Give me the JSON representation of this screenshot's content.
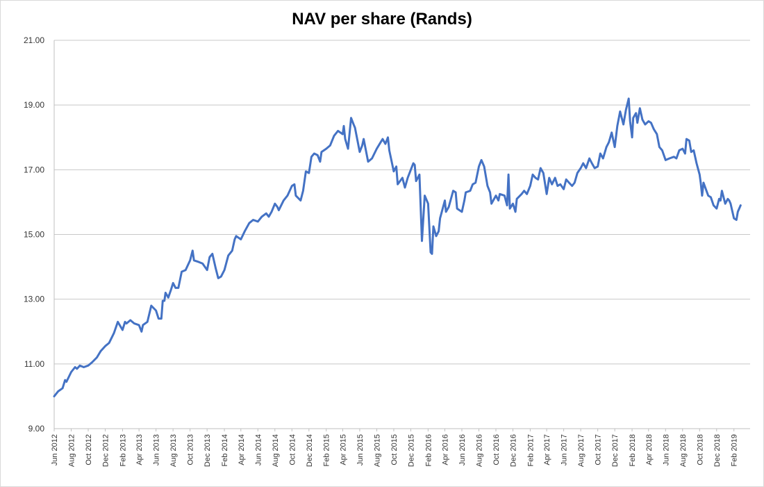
{
  "chart_data": {
    "type": "line",
    "title": "NAV per share (Rands)",
    "xlabel": "",
    "ylabel": "",
    "ylim": [
      9.0,
      21.0
    ],
    "y_ticks": [
      "9.00",
      "11.00",
      "13.00",
      "15.00",
      "17.00",
      "19.00",
      "21.00"
    ],
    "grid": true,
    "legend": "none",
    "line_color": "#4472C4",
    "x_tick_labels": [
      "Jun 2012",
      "Aug 2012",
      "Oct 2012",
      "Dec 2012",
      "Feb 2013",
      "Apr 2013",
      "Jun 2013",
      "Aug 2013",
      "Oct 2013",
      "Dec 2013",
      "Feb 2014",
      "Apr 2014",
      "Jun 2014",
      "Aug 2014",
      "Oct 2014",
      "Dec 2014",
      "Feb 2015",
      "Apr 2015",
      "Jun 2015",
      "Aug 2015",
      "Oct 2015",
      "Dec 2015",
      "Feb 2016",
      "Apr 2016",
      "Jun 2016",
      "Aug 2016",
      "Oct 2016",
      "Dec 2016",
      "Feb 2017",
      "Apr 2017",
      "Jun 2017",
      "Aug 2017",
      "Oct 2017",
      "Dec 2017",
      "Feb 2018",
      "Apr 2018",
      "Jun 2018",
      "Aug 2018",
      "Oct 2018",
      "Dec 2018",
      "Feb 2019"
    ],
    "x_range": [
      "2012-06-01",
      "2019-03-31"
    ],
    "series": [
      {
        "points": [
          [
            "2012-06-01",
            10.0
          ],
          [
            "2012-06-15",
            10.15
          ],
          [
            "2012-07-01",
            10.25
          ],
          [
            "2012-07-10",
            10.5
          ],
          [
            "2012-07-15",
            10.45
          ],
          [
            "2012-08-01",
            10.75
          ],
          [
            "2012-08-15",
            10.9
          ],
          [
            "2012-08-22",
            10.85
          ],
          [
            "2012-09-01",
            10.95
          ],
          [
            "2012-09-15",
            10.9
          ],
          [
            "2012-10-01",
            10.95
          ],
          [
            "2012-10-15",
            11.05
          ],
          [
            "2012-11-01",
            11.2
          ],
          [
            "2012-11-15",
            11.4
          ],
          [
            "2012-12-01",
            11.55
          ],
          [
            "2012-12-15",
            11.65
          ],
          [
            "2013-01-01",
            11.95
          ],
          [
            "2013-01-15",
            12.3
          ],
          [
            "2013-02-01",
            12.05
          ],
          [
            "2013-02-10",
            12.3
          ],
          [
            "2013-02-15",
            12.25
          ],
          [
            "2013-03-01",
            12.35
          ],
          [
            "2013-03-15",
            12.25
          ],
          [
            "2013-04-01",
            12.2
          ],
          [
            "2013-04-10",
            12.0
          ],
          [
            "2013-04-15",
            12.2
          ],
          [
            "2013-05-01",
            12.3
          ],
          [
            "2013-05-15",
            12.8
          ],
          [
            "2013-06-01",
            12.65
          ],
          [
            "2013-06-10",
            12.4
          ],
          [
            "2013-06-20",
            12.4
          ],
          [
            "2013-06-25",
            12.95
          ],
          [
            "2013-07-01",
            12.95
          ],
          [
            "2013-07-05",
            13.2
          ],
          [
            "2013-07-15",
            13.05
          ],
          [
            "2013-07-25",
            13.3
          ],
          [
            "2013-08-01",
            13.5
          ],
          [
            "2013-08-10",
            13.35
          ],
          [
            "2013-08-20",
            13.35
          ],
          [
            "2013-09-01",
            13.85
          ],
          [
            "2013-09-15",
            13.9
          ],
          [
            "2013-10-01",
            14.2
          ],
          [
            "2013-10-10",
            14.5
          ],
          [
            "2013-10-15",
            14.2
          ],
          [
            "2013-11-01",
            14.15
          ],
          [
            "2013-11-15",
            14.1
          ],
          [
            "2013-12-01",
            13.9
          ],
          [
            "2013-12-10",
            14.3
          ],
          [
            "2013-12-20",
            14.4
          ],
          [
            "2014-01-01",
            13.95
          ],
          [
            "2014-01-10",
            13.65
          ],
          [
            "2014-01-20",
            13.7
          ],
          [
            "2014-02-01",
            13.9
          ],
          [
            "2014-02-15",
            14.35
          ],
          [
            "2014-03-01",
            14.5
          ],
          [
            "2014-03-10",
            14.85
          ],
          [
            "2014-03-15",
            14.95
          ],
          [
            "2014-04-01",
            14.85
          ],
          [
            "2014-04-15",
            15.1
          ],
          [
            "2014-05-01",
            15.35
          ],
          [
            "2014-05-15",
            15.45
          ],
          [
            "2014-06-01",
            15.4
          ],
          [
            "2014-06-15",
            15.55
          ],
          [
            "2014-07-01",
            15.65
          ],
          [
            "2014-07-10",
            15.55
          ],
          [
            "2014-07-20",
            15.7
          ],
          [
            "2014-08-01",
            15.95
          ],
          [
            "2014-08-10",
            15.85
          ],
          [
            "2014-08-15",
            15.75
          ],
          [
            "2014-09-01",
            16.05
          ],
          [
            "2014-09-15",
            16.2
          ],
          [
            "2014-10-01",
            16.5
          ],
          [
            "2014-10-10",
            16.55
          ],
          [
            "2014-10-15",
            16.2
          ],
          [
            "2014-11-01",
            16.05
          ],
          [
            "2014-11-10",
            16.35
          ],
          [
            "2014-11-20",
            16.95
          ],
          [
            "2014-12-01",
            16.9
          ],
          [
            "2014-12-10",
            17.4
          ],
          [
            "2014-12-20",
            17.5
          ],
          [
            "2015-01-01",
            17.45
          ],
          [
            "2015-01-10",
            17.25
          ],
          [
            "2015-01-15",
            17.55
          ],
          [
            "2015-02-01",
            17.65
          ],
          [
            "2015-02-15",
            17.75
          ],
          [
            "2015-03-01",
            18.05
          ],
          [
            "2015-03-15",
            18.2
          ],
          [
            "2015-04-01",
            18.1
          ],
          [
            "2015-04-05",
            18.35
          ],
          [
            "2015-04-10",
            17.95
          ],
          [
            "2015-04-20",
            17.65
          ],
          [
            "2015-05-01",
            18.6
          ],
          [
            "2015-05-10",
            18.4
          ],
          [
            "2015-05-15",
            18.3
          ],
          [
            "2015-06-01",
            17.55
          ],
          [
            "2015-06-10",
            17.75
          ],
          [
            "2015-06-15",
            17.95
          ],
          [
            "2015-07-01",
            17.25
          ],
          [
            "2015-07-15",
            17.35
          ],
          [
            "2015-08-01",
            17.65
          ],
          [
            "2015-08-15",
            17.85
          ],
          [
            "2015-08-22",
            17.95
          ],
          [
            "2015-09-01",
            17.8
          ],
          [
            "2015-09-10",
            18.0
          ],
          [
            "2015-09-15",
            17.6
          ],
          [
            "2015-10-01",
            16.95
          ],
          [
            "2015-10-10",
            17.1
          ],
          [
            "2015-10-15",
            16.55
          ],
          [
            "2015-11-01",
            16.75
          ],
          [
            "2015-11-10",
            16.45
          ],
          [
            "2015-11-20",
            16.75
          ],
          [
            "2015-12-01",
            17.0
          ],
          [
            "2015-12-10",
            17.2
          ],
          [
            "2015-12-15",
            17.15
          ],
          [
            "2015-12-20",
            16.65
          ],
          [
            "2016-01-01",
            16.85
          ],
          [
            "2016-01-05",
            15.95
          ],
          [
            "2016-01-10",
            14.8
          ],
          [
            "2016-01-15",
            15.5
          ],
          [
            "2016-01-20",
            16.2
          ],
          [
            "2016-02-01",
            15.95
          ],
          [
            "2016-02-10",
            14.45
          ],
          [
            "2016-02-15",
            14.4
          ],
          [
            "2016-02-20",
            15.25
          ],
          [
            "2016-03-01",
            14.95
          ],
          [
            "2016-03-10",
            15.1
          ],
          [
            "2016-03-15",
            15.5
          ],
          [
            "2016-04-01",
            16.05
          ],
          [
            "2016-04-05",
            15.7
          ],
          [
            "2016-04-15",
            15.85
          ],
          [
            "2016-05-01",
            16.35
          ],
          [
            "2016-05-10",
            16.3
          ],
          [
            "2016-05-15",
            15.8
          ],
          [
            "2016-06-01",
            15.7
          ],
          [
            "2016-06-10",
            16.05
          ],
          [
            "2016-06-15",
            16.3
          ],
          [
            "2016-07-01",
            16.35
          ],
          [
            "2016-07-10",
            16.55
          ],
          [
            "2016-07-20",
            16.6
          ],
          [
            "2016-08-01",
            17.1
          ],
          [
            "2016-08-10",
            17.3
          ],
          [
            "2016-08-20",
            17.1
          ],
          [
            "2016-09-01",
            16.5
          ],
          [
            "2016-09-10",
            16.3
          ],
          [
            "2016-09-15",
            15.95
          ],
          [
            "2016-10-01",
            16.2
          ],
          [
            "2016-10-10",
            16.05
          ],
          [
            "2016-10-15",
            16.25
          ],
          [
            "2016-11-01",
            16.2
          ],
          [
            "2016-11-10",
            15.9
          ],
          [
            "2016-11-15",
            16.85
          ],
          [
            "2016-11-20",
            15.8
          ],
          [
            "2016-12-01",
            15.95
          ],
          [
            "2016-12-10",
            15.7
          ],
          [
            "2016-12-15",
            16.1
          ],
          [
            "2017-01-01",
            16.25
          ],
          [
            "2017-01-10",
            16.35
          ],
          [
            "2017-01-20",
            16.25
          ],
          [
            "2017-02-01",
            16.5
          ],
          [
            "2017-02-10",
            16.85
          ],
          [
            "2017-02-20",
            16.75
          ],
          [
            "2017-03-01",
            16.7
          ],
          [
            "2017-03-10",
            17.05
          ],
          [
            "2017-03-20",
            16.9
          ],
          [
            "2017-04-01",
            16.25
          ],
          [
            "2017-04-10",
            16.75
          ],
          [
            "2017-04-20",
            16.55
          ],
          [
            "2017-05-01",
            16.75
          ],
          [
            "2017-05-10",
            16.5
          ],
          [
            "2017-05-20",
            16.55
          ],
          [
            "2017-06-01",
            16.4
          ],
          [
            "2017-06-10",
            16.7
          ],
          [
            "2017-06-20",
            16.6
          ],
          [
            "2017-07-01",
            16.5
          ],
          [
            "2017-07-10",
            16.6
          ],
          [
            "2017-07-20",
            16.9
          ],
          [
            "2017-08-01",
            17.05
          ],
          [
            "2017-08-10",
            17.2
          ],
          [
            "2017-08-20",
            17.05
          ],
          [
            "2017-09-01",
            17.35
          ],
          [
            "2017-09-10",
            17.2
          ],
          [
            "2017-09-20",
            17.05
          ],
          [
            "2017-10-01",
            17.1
          ],
          [
            "2017-10-10",
            17.5
          ],
          [
            "2017-10-20",
            17.35
          ],
          [
            "2017-11-01",
            17.7
          ],
          [
            "2017-11-10",
            17.85
          ],
          [
            "2017-11-20",
            18.15
          ],
          [
            "2017-12-01",
            17.7
          ],
          [
            "2017-12-10",
            18.35
          ],
          [
            "2017-12-20",
            18.8
          ],
          [
            "2018-01-01",
            18.4
          ],
          [
            "2018-01-10",
            18.85
          ],
          [
            "2018-01-20",
            19.2
          ],
          [
            "2018-01-25",
            18.5
          ],
          [
            "2018-02-01",
            18.0
          ],
          [
            "2018-02-05",
            18.6
          ],
          [
            "2018-02-15",
            18.75
          ],
          [
            "2018-02-20",
            18.45
          ],
          [
            "2018-03-01",
            18.9
          ],
          [
            "2018-03-10",
            18.55
          ],
          [
            "2018-03-20",
            18.4
          ],
          [
            "2018-04-01",
            18.5
          ],
          [
            "2018-04-10",
            18.45
          ],
          [
            "2018-04-20",
            18.25
          ],
          [
            "2018-05-01",
            18.1
          ],
          [
            "2018-05-10",
            17.7
          ],
          [
            "2018-05-20",
            17.6
          ],
          [
            "2018-06-01",
            17.3
          ],
          [
            "2018-06-15",
            17.35
          ],
          [
            "2018-07-01",
            17.4
          ],
          [
            "2018-07-10",
            17.35
          ],
          [
            "2018-07-20",
            17.6
          ],
          [
            "2018-08-01",
            17.65
          ],
          [
            "2018-08-10",
            17.5
          ],
          [
            "2018-08-15",
            17.95
          ],
          [
            "2018-08-25",
            17.9
          ],
          [
            "2018-09-01",
            17.55
          ],
          [
            "2018-09-10",
            17.6
          ],
          [
            "2018-09-20",
            17.2
          ],
          [
            "2018-10-01",
            16.85
          ],
          [
            "2018-10-05",
            16.6
          ],
          [
            "2018-10-10",
            16.2
          ],
          [
            "2018-10-15",
            16.6
          ],
          [
            "2018-11-01",
            16.2
          ],
          [
            "2018-11-10",
            16.15
          ],
          [
            "2018-11-20",
            15.9
          ],
          [
            "2018-12-01",
            15.8
          ],
          [
            "2018-12-10",
            16.1
          ],
          [
            "2018-12-15",
            16.05
          ],
          [
            "2018-12-20",
            16.35
          ],
          [
            "2019-01-01",
            15.95
          ],
          [
            "2019-01-10",
            16.1
          ],
          [
            "2019-01-15",
            16.05
          ],
          [
            "2019-01-20",
            15.95
          ],
          [
            "2019-02-01",
            15.5
          ],
          [
            "2019-02-10",
            15.45
          ],
          [
            "2019-02-15",
            15.7
          ],
          [
            "2019-02-25",
            15.9
          ]
        ]
      }
    ]
  }
}
